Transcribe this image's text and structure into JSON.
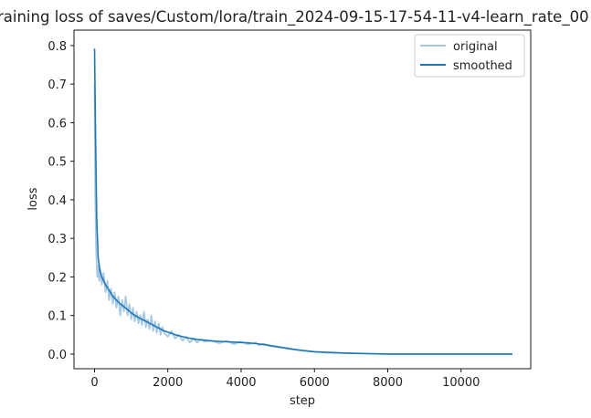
{
  "chart_data": {
    "type": "line",
    "title": "raining loss of saves/Custom/lora/train_2024-09-15-17-54-11-v4-learn_rate_00",
    "xlabel": "step",
    "ylabel": "loss",
    "xlim": [
      -560,
      11900
    ],
    "ylim": [
      -0.038,
      0.84
    ],
    "xticks": [
      0,
      2000,
      4000,
      6000,
      8000,
      10000
    ],
    "xtick_labels": [
      "0",
      "2000",
      "4000",
      "6000",
      "8000",
      "10000"
    ],
    "yticks": [
      0.0,
      0.1,
      0.2,
      0.3,
      0.4,
      0.5,
      0.6,
      0.7,
      0.8
    ],
    "ytick_labels": [
      "0.0",
      "0.1",
      "0.2",
      "0.3",
      "0.4",
      "0.5",
      "0.6",
      "0.7",
      "0.8"
    ],
    "grid": false,
    "legend_position": "top-right",
    "series": [
      {
        "name": "original",
        "color": "#a6c8e3",
        "x": [
          0,
          20,
          40,
          60,
          80,
          100,
          130,
          160,
          200,
          250,
          300,
          350,
          400,
          450,
          500,
          550,
          600,
          650,
          700,
          750,
          800,
          850,
          900,
          950,
          1000,
          1050,
          1100,
          1150,
          1200,
          1250,
          1300,
          1350,
          1400,
          1450,
          1500,
          1550,
          1600,
          1650,
          1700,
          1750,
          1800,
          1850,
          1900,
          2000,
          2100,
          2200,
          2300,
          2400,
          2500,
          2600,
          2700,
          2800,
          2900,
          3000,
          3200,
          3400,
          3600,
          3800,
          4000,
          4200,
          4400,
          4500,
          4600,
          4800,
          5000,
          5200,
          5400,
          5600,
          5800,
          6000,
          6300,
          6600,
          7000,
          7500,
          8000,
          9000,
          10000,
          11000,
          11400
        ],
        "values": [
          0.7,
          0.4,
          0.28,
          0.23,
          0.2,
          0.23,
          0.19,
          0.22,
          0.18,
          0.21,
          0.16,
          0.19,
          0.14,
          0.17,
          0.13,
          0.16,
          0.12,
          0.15,
          0.1,
          0.14,
          0.11,
          0.15,
          0.1,
          0.13,
          0.09,
          0.12,
          0.085,
          0.11,
          0.08,
          0.1,
          0.075,
          0.11,
          0.07,
          0.09,
          0.065,
          0.1,
          0.06,
          0.085,
          0.055,
          0.08,
          0.05,
          0.07,
          0.055,
          0.045,
          0.06,
          0.04,
          0.05,
          0.035,
          0.045,
          0.03,
          0.04,
          0.03,
          0.038,
          0.032,
          0.035,
          0.028,
          0.034,
          0.026,
          0.032,
          0.025,
          0.03,
          0.022,
          0.027,
          0.02,
          0.018,
          0.015,
          0.012,
          0.01,
          0.008,
          0.006,
          0.004,
          0.003,
          0.002,
          0.001,
          0.0,
          0.0,
          0.0,
          0.0,
          0.0
        ]
      },
      {
        "name": "smoothed",
        "color": "#1f77b4",
        "x": [
          0,
          30,
          60,
          100,
          150,
          200,
          250,
          300,
          400,
          500,
          600,
          700,
          800,
          900,
          1000,
          1100,
          1200,
          1300,
          1400,
          1500,
          1600,
          1700,
          1800,
          1900,
          2000,
          2200,
          2400,
          2600,
          2800,
          3000,
          3200,
          3400,
          3600,
          3800,
          4000,
          4200,
          4400,
          4600,
          4800,
          5000,
          5200,
          5400,
          5600,
          5800,
          6000,
          6500,
          7000,
          7500,
          8000,
          9000,
          10000,
          11000,
          11400
        ],
        "values": [
          0.792,
          0.55,
          0.35,
          0.25,
          0.215,
          0.2,
          0.19,
          0.18,
          0.165,
          0.15,
          0.14,
          0.13,
          0.123,
          0.115,
          0.107,
          0.1,
          0.095,
          0.09,
          0.085,
          0.08,
          0.075,
          0.07,
          0.065,
          0.06,
          0.057,
          0.05,
          0.045,
          0.041,
          0.038,
          0.036,
          0.034,
          0.033,
          0.032,
          0.031,
          0.03,
          0.029,
          0.027,
          0.025,
          0.022,
          0.019,
          0.016,
          0.013,
          0.01,
          0.008,
          0.006,
          0.004,
          0.002,
          0.001,
          0.0,
          0.0,
          0.0,
          0.0,
          0.0
        ]
      }
    ]
  }
}
